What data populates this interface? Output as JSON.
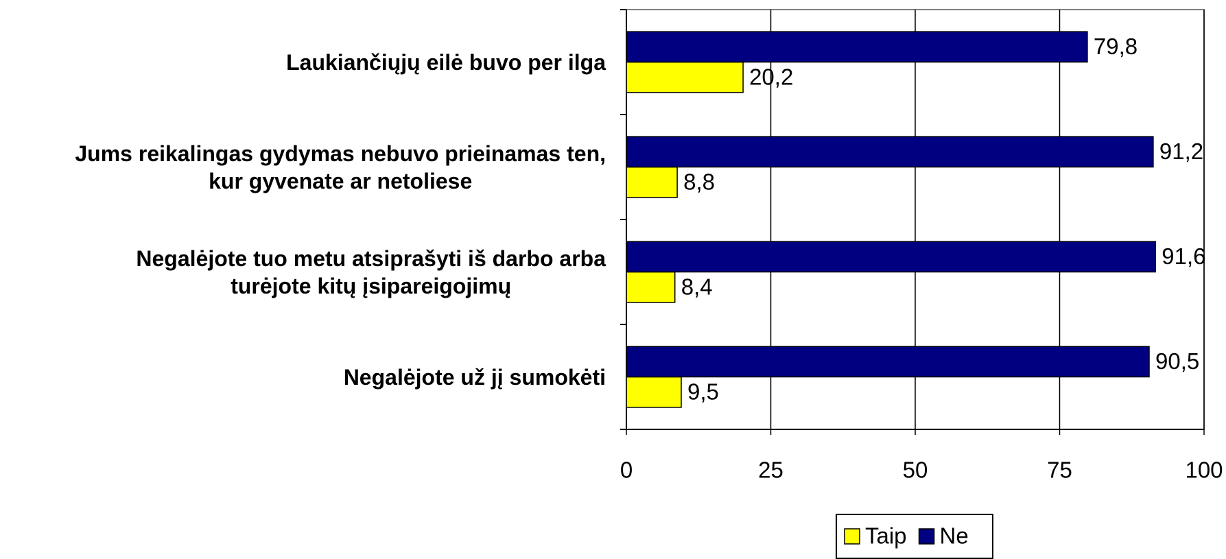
{
  "chart_data": {
    "type": "bar",
    "orientation": "horizontal",
    "categories": [
      "Laukiančiųjų eilė buvo per ilga",
      "Jums reikalingas gydymas nebuvo prieinamas ten,\nkur gyvenate ar netoliese",
      "Negalėjote tuo metu atsiprašyti iš darbo arba\nturėjote kitų įsipareigojimų",
      "Negalėjote už jį sumokėti"
    ],
    "series": [
      {
        "name": "Taip",
        "color": "#ffff00",
        "values": [
          20.2,
          8.8,
          8.4,
          9.5
        ],
        "value_labels": [
          "20,2",
          "8,8",
          "8,4",
          "9,5"
        ]
      },
      {
        "name": "Ne",
        "color": "#000080",
        "values": [
          79.8,
          91.2,
          91.6,
          90.5
        ],
        "value_labels": [
          "79,8",
          "91,2",
          "91,6",
          "90,5"
        ]
      }
    ],
    "xlim": [
      0,
      100
    ],
    "xticks": [
      0,
      25,
      50,
      75,
      100
    ],
    "grid": true,
    "legend": "bottom"
  }
}
